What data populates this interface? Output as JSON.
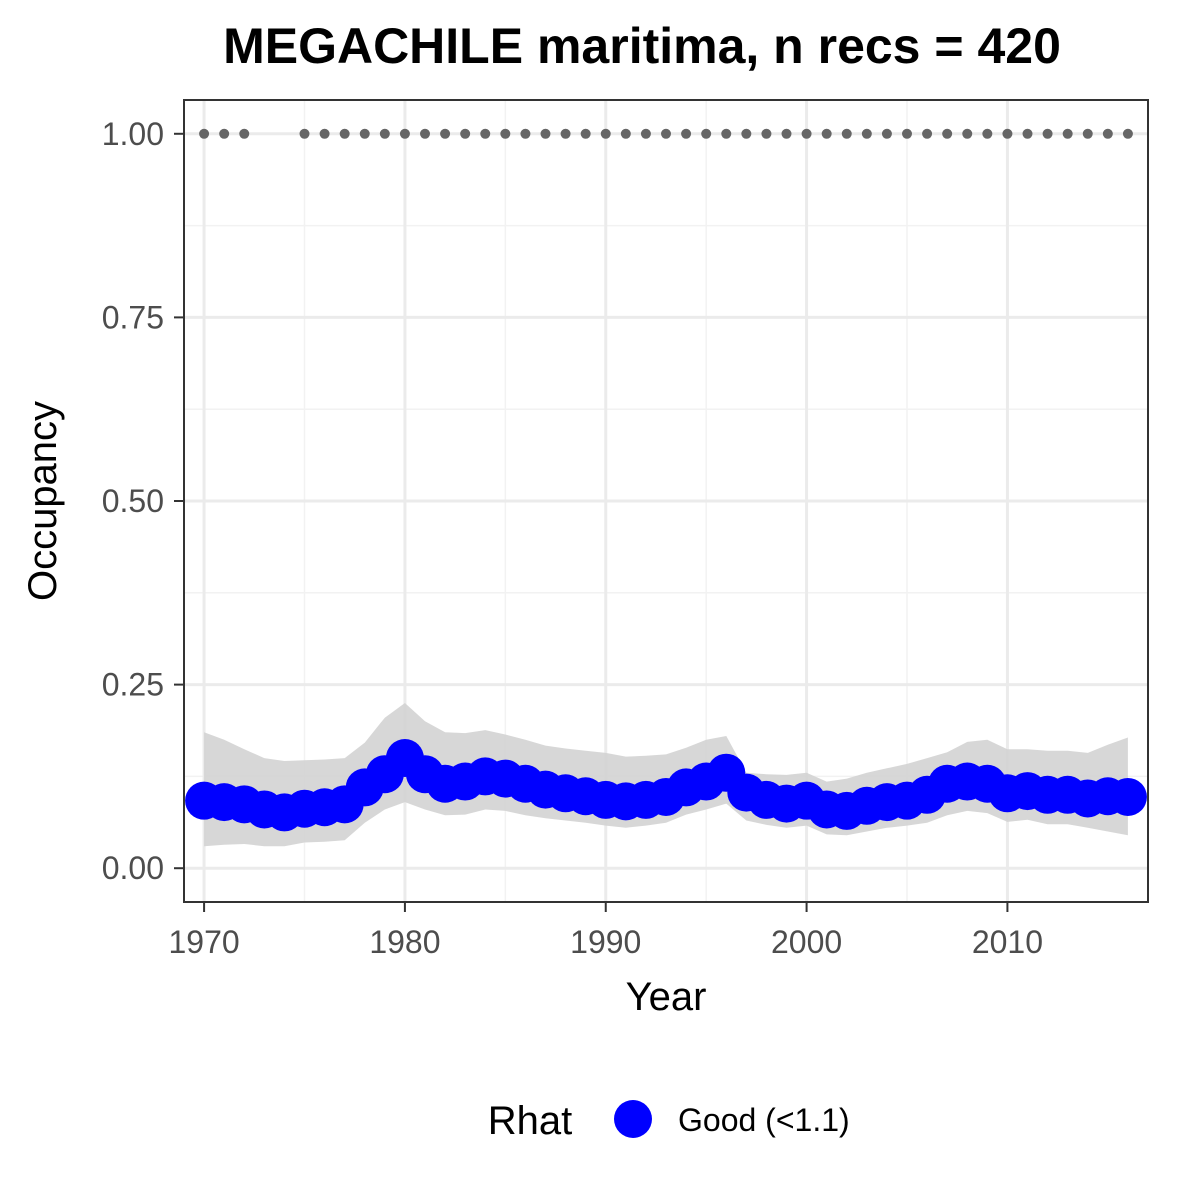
{
  "chart_data": {
    "type": "line",
    "title": "MEGACHILE maritima, n recs = 420",
    "xlabel": "Year",
    "ylabel": "Occupancy",
    "xlim": [
      1969,
      2017
    ],
    "ylim": [
      -0.046,
      1.046
    ],
    "x_ticks": [
      "1970",
      "1980",
      "1990",
      "2000",
      "2010"
    ],
    "y_ticks": [
      "0.00",
      "0.25",
      "0.50",
      "0.75",
      "1.00"
    ],
    "grid": true,
    "x": [
      1970,
      1971,
      1972,
      1973,
      1974,
      1975,
      1976,
      1977,
      1978,
      1979,
      1980,
      1981,
      1982,
      1983,
      1984,
      1985,
      1986,
      1987,
      1988,
      1989,
      1990,
      1991,
      1992,
      1993,
      1994,
      1995,
      1996,
      1997,
      1998,
      1999,
      2000,
      2001,
      2002,
      2003,
      2004,
      2005,
      2006,
      2007,
      2008,
      2009,
      2010,
      2011,
      2012,
      2013,
      2014,
      2015,
      2016
    ],
    "series": [
      {
        "name": "Occupancy",
        "color": "#0000ff",
        "values": [
          0.092,
          0.09,
          0.087,
          0.08,
          0.076,
          0.081,
          0.083,
          0.087,
          0.11,
          0.128,
          0.15,
          0.128,
          0.115,
          0.118,
          0.125,
          0.122,
          0.115,
          0.107,
          0.102,
          0.098,
          0.093,
          0.091,
          0.093,
          0.097,
          0.11,
          0.118,
          0.13,
          0.103,
          0.093,
          0.088,
          0.092,
          0.08,
          0.078,
          0.085,
          0.09,
          0.092,
          0.1,
          0.115,
          0.118,
          0.115,
          0.102,
          0.105,
          0.1,
          0.1,
          0.095,
          0.098,
          0.097
        ]
      }
    ],
    "ci_upper": [
      0.185,
      0.175,
      0.162,
      0.15,
      0.146,
      0.147,
      0.148,
      0.15,
      0.171,
      0.205,
      0.225,
      0.2,
      0.185,
      0.184,
      0.188,
      0.182,
      0.175,
      0.167,
      0.163,
      0.16,
      0.157,
      0.152,
      0.153,
      0.155,
      0.164,
      0.175,
      0.18,
      0.13,
      0.128,
      0.127,
      0.13,
      0.118,
      0.122,
      0.13,
      0.136,
      0.142,
      0.15,
      0.158,
      0.172,
      0.175,
      0.162,
      0.162,
      0.16,
      0.16,
      0.157,
      0.168,
      0.178
    ],
    "ci_lower": [
      0.03,
      0.032,
      0.033,
      0.03,
      0.03,
      0.035,
      0.036,
      0.038,
      0.062,
      0.08,
      0.09,
      0.08,
      0.072,
      0.073,
      0.08,
      0.078,
      0.072,
      0.068,
      0.065,
      0.062,
      0.058,
      0.055,
      0.058,
      0.062,
      0.073,
      0.08,
      0.088,
      0.065,
      0.059,
      0.055,
      0.058,
      0.046,
      0.045,
      0.05,
      0.055,
      0.058,
      0.062,
      0.072,
      0.078,
      0.075,
      0.063,
      0.066,
      0.06,
      0.06,
      0.055,
      0.05,
      0.045
    ],
    "ci_color": "#d3d3d3",
    "record_years": [
      1970,
      1971,
      1972,
      1975,
      1976,
      1977,
      1978,
      1979,
      1980,
      1981,
      1982,
      1983,
      1984,
      1985,
      1986,
      1987,
      1988,
      1989,
      1990,
      1991,
      1992,
      1993,
      1994,
      1995,
      1996,
      1997,
      1998,
      1999,
      2000,
      2001,
      2002,
      2003,
      2004,
      2005,
      2006,
      2007,
      2008,
      2009,
      2010,
      2011,
      2012,
      2013,
      2014,
      2015,
      2016
    ],
    "record_value": 1.0,
    "record_color": "#666666",
    "legend": {
      "title": "Rhat",
      "placement": "bottom",
      "entries": [
        {
          "label": "Good (<1.1)",
          "color": "#0000ff"
        }
      ]
    }
  }
}
